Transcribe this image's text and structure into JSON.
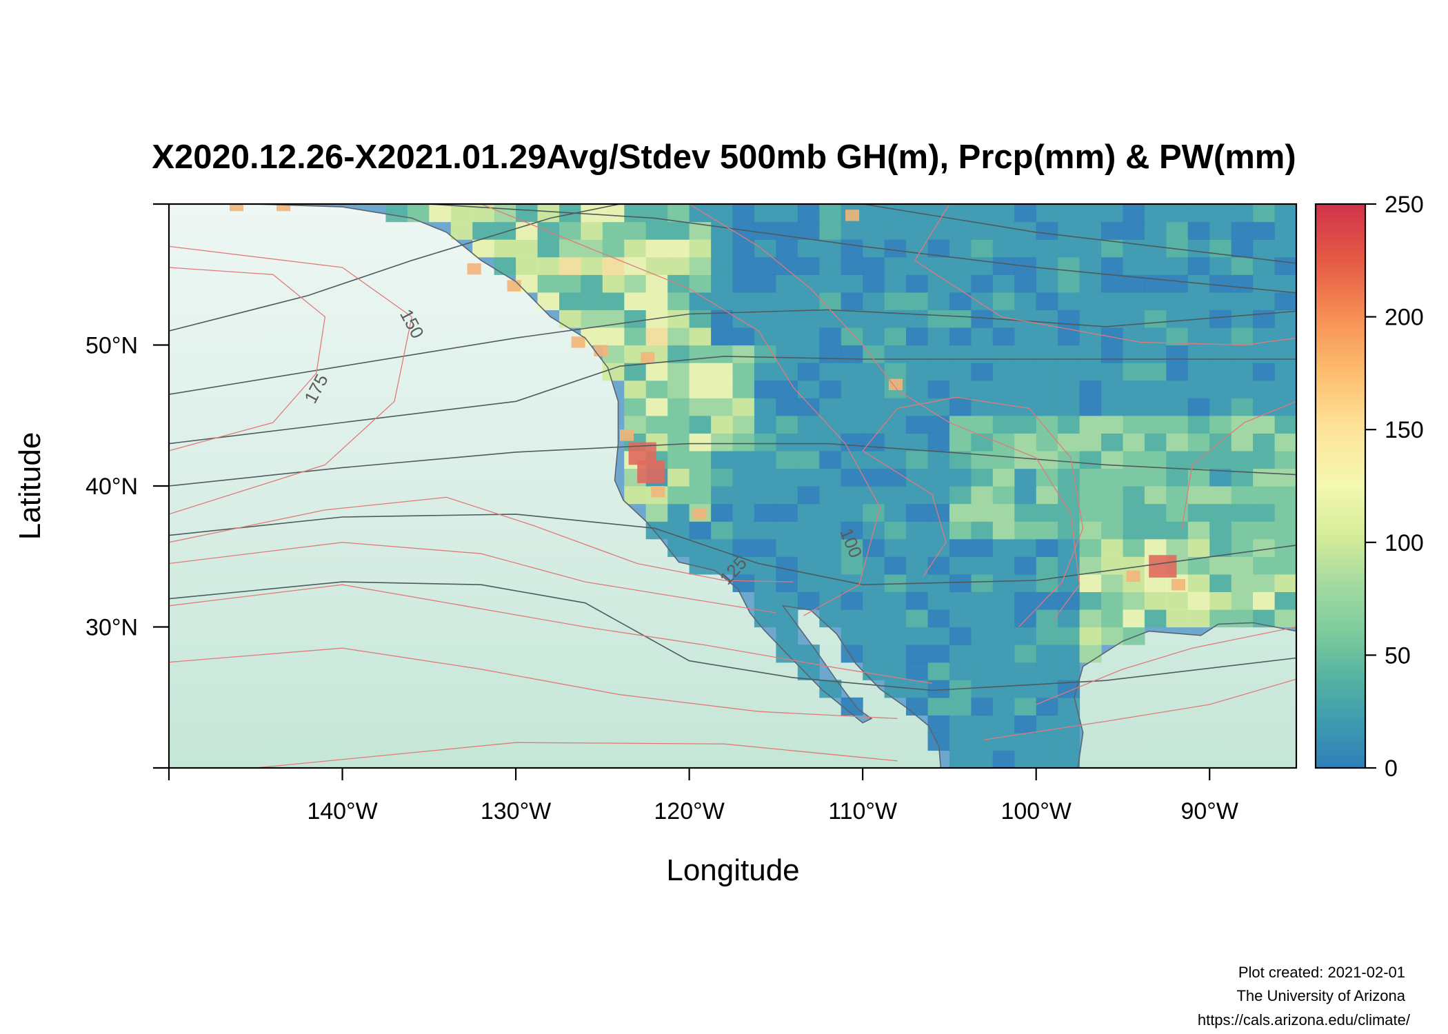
{
  "title": "X2020.12.26-X2021.01.29Avg/Stdev 500mb GH(m), Prcp(mm) & PW(mm)",
  "chart_data": {
    "type": "heatmap",
    "xlabel": "Longitude",
    "ylabel": "Latitude",
    "xlim": [
      -150,
      -85
    ],
    "ylim": [
      20,
      60
    ],
    "x_ticks": [
      {
        "value": -150,
        "label": ""
      },
      {
        "value": -140,
        "label": "140°W"
      },
      {
        "value": -130,
        "label": "130°W"
      },
      {
        "value": -120,
        "label": "120°W"
      },
      {
        "value": -110,
        "label": "110°W"
      },
      {
        "value": -100,
        "label": "100°W"
      },
      {
        "value": -90,
        "label": "90°W"
      }
    ],
    "y_ticks": [
      {
        "value": 20,
        "label": ""
      },
      {
        "value": 30,
        "label": "30°N"
      },
      {
        "value": 40,
        "label": "40°N"
      },
      {
        "value": 50,
        "label": "50°N"
      },
      {
        "value": 60,
        "label": ""
      }
    ],
    "colorbar": {
      "min": 0,
      "max": 250,
      "ticks": [
        0,
        50,
        100,
        150,
        200,
        250
      ],
      "colors": [
        "#2f7fb8",
        "#3d9bb0",
        "#55b3a1",
        "#7ccb9d",
        "#a6dba0",
        "#d4ec98",
        "#f4f8b0",
        "#fee49a",
        "#fdbe6f",
        "#f78f55",
        "#e55a44",
        "#d0334a"
      ]
    },
    "grid": false,
    "contour_labels": [
      {
        "text": "150",
        "lon": -136.3,
        "lat": 51.3,
        "angle": 62
      },
      {
        "text": "175",
        "lon": -141.2,
        "lat": 46.7,
        "angle": -62
      },
      {
        "text": "100",
        "lon": -111.0,
        "lat": 35.8,
        "angle": 68
      },
      {
        "text": "125",
        "lon": -117.2,
        "lat": 33.7,
        "angle": -48
      }
    ]
  },
  "credits": {
    "line1": "Plot created: 2021-02-01",
    "line2": "The University of Arizona",
    "line3": "https://cals.arizona.edu/climate/"
  }
}
